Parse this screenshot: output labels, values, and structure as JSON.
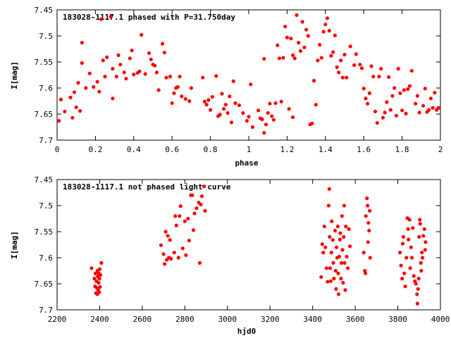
{
  "chart_data": [
    {
      "type": "scatter",
      "title": "183028-1117.1 phased with P=31.750day",
      "xlabel": "phase",
      "ylabel": "I[mag]",
      "xlim": [
        0,
        2
      ],
      "ylim": [
        7.45,
        7.7
      ],
      "y_inverted": true,
      "grid": false,
      "marker_color": "#ff0000",
      "xticks": [
        "0",
        "0.2",
        "0.4",
        "0.6",
        "0.8",
        "1",
        "1.2",
        "1.4",
        "1.6",
        "1.8",
        "2"
      ],
      "yticks": [
        "7.45",
        "7.5",
        "7.55",
        "7.6",
        "7.65",
        "7.7"
      ],
      "points": [
        [
          0.01,
          7.663
        ],
        [
          0.02,
          7.622
        ],
        [
          0.04,
          7.645
        ],
        [
          0.07,
          7.618
        ],
        [
          0.08,
          7.657
        ],
        [
          0.09,
          7.608
        ],
        [
          0.1,
          7.637
        ],
        [
          0.11,
          7.59
        ],
        [
          0.12,
          7.644
        ],
        [
          0.13,
          7.552
        ],
        [
          0.13,
          7.513
        ],
        [
          0.15,
          7.6
        ],
        [
          0.17,
          7.572
        ],
        [
          0.19,
          7.598
        ],
        [
          0.21,
          7.588
        ],
        [
          0.22,
          7.607
        ],
        [
          0.23,
          7.468
        ],
        [
          0.24,
          7.547
        ],
        [
          0.25,
          7.578
        ],
        [
          0.26,
          7.541
        ],
        [
          0.28,
          7.463
        ],
        [
          0.29,
          7.563
        ],
        [
          0.29,
          7.62
        ],
        [
          0.31,
          7.578
        ],
        [
          0.32,
          7.537
        ],
        [
          0.33,
          7.555
        ],
        [
          0.35,
          7.57
        ],
        [
          0.36,
          7.582
        ],
        [
          0.38,
          7.543
        ],
        [
          0.39,
          7.528
        ],
        [
          0.4,
          7.574
        ],
        [
          0.42,
          7.571
        ],
        [
          0.43,
          7.568
        ],
        [
          0.44,
          7.498
        ],
        [
          0.46,
          7.573
        ],
        [
          0.48,
          7.533
        ],
        [
          0.49,
          7.545
        ],
        [
          0.5,
          7.555
        ],
        [
          0.51,
          7.557
        ],
        [
          0.52,
          7.57
        ],
        [
          0.53,
          7.604
        ],
        [
          0.55,
          7.515
        ],
        [
          0.56,
          7.532
        ],
        [
          0.57,
          7.58
        ],
        [
          0.59,
          7.578
        ],
        [
          0.6,
          7.629
        ],
        [
          0.61,
          7.61
        ],
        [
          0.62,
          7.6
        ],
        [
          0.63,
          7.598
        ],
        [
          0.64,
          7.578
        ],
        [
          0.65,
          7.616
        ],
        [
          0.67,
          7.621
        ],
        [
          0.69,
          7.625
        ],
        [
          0.7,
          7.6
        ],
        [
          0.76,
          7.58
        ],
        [
          0.77,
          7.626
        ],
        [
          0.78,
          7.632
        ],
        [
          0.79,
          7.623
        ],
        [
          0.8,
          7.642
        ],
        [
          0.81,
          7.617
        ],
        [
          0.83,
          7.577
        ],
        [
          0.84,
          7.654
        ],
        [
          0.85,
          7.651
        ],
        [
          0.86,
          7.611
        ],
        [
          0.87,
          7.64
        ],
        [
          0.88,
          7.632
        ],
        [
          0.89,
          7.648
        ],
        [
          0.9,
          7.616
        ],
        [
          0.91,
          7.666
        ],
        [
          0.92,
          7.587
        ],
        [
          0.93,
          7.629
        ],
        [
          0.95,
          7.633
        ],
        [
          0.97,
          7.648
        ],
        [
          0.99,
          7.663
        ],
        [
          1.0,
          7.655
        ],
        [
          1.01,
          7.593
        ],
        [
          1.02,
          7.675
        ],
        [
          1.05,
          7.643
        ],
        [
          1.06,
          7.658
        ],
        [
          1.07,
          7.66
        ],
        [
          1.08,
          7.686
        ],
        [
          1.08,
          7.544
        ],
        [
          1.09,
          7.67
        ],
        [
          1.1,
          7.648
        ],
        [
          1.11,
          7.63
        ],
        [
          1.12,
          7.654
        ],
        [
          1.13,
          7.661
        ],
        [
          1.14,
          7.629
        ],
        [
          1.15,
          7.518
        ],
        [
          1.16,
          7.543
        ],
        [
          1.17,
          7.626
        ],
        [
          1.18,
          7.542
        ],
        [
          1.19,
          7.482
        ],
        [
          1.2,
          7.503
        ],
        [
          1.21,
          7.64
        ],
        [
          1.22,
          7.505
        ],
        [
          1.23,
          7.656
        ],
        [
          1.23,
          7.537
        ],
        [
          1.24,
          7.543
        ],
        [
          1.25,
          7.46
        ],
        [
          1.26,
          7.513
        ],
        [
          1.27,
          7.529
        ],
        [
          1.28,
          7.473
        ],
        [
          1.29,
          7.522
        ],
        [
          1.3,
          7.488
        ],
        [
          1.31,
          7.5
        ],
        [
          1.32,
          7.67
        ],
        [
          1.33,
          7.668
        ],
        [
          1.34,
          7.586
        ],
        [
          1.35,
          7.632
        ],
        [
          1.36,
          7.547
        ],
        [
          1.37,
          7.517
        ],
        [
          1.38,
          7.542
        ],
        [
          1.39,
          7.492
        ],
        [
          1.4,
          7.478
        ],
        [
          1.41,
          7.466
        ],
        [
          1.42,
          7.49
        ],
        [
          1.43,
          7.538
        ],
        [
          1.44,
          7.531
        ],
        [
          1.45,
          7.499
        ],
        [
          1.46,
          7.56
        ],
        [
          1.47,
          7.57
        ],
        [
          1.48,
          7.547
        ],
        [
          1.49,
          7.58
        ],
        [
          1.5,
          7.536
        ],
        [
          1.51,
          7.58
        ],
        [
          1.53,
          7.52
        ],
        [
          1.55,
          7.556
        ],
        [
          1.56,
          7.535
        ],
        [
          1.58,
          7.555
        ],
        [
          1.59,
          7.562
        ],
        [
          1.6,
          7.601
        ],
        [
          1.61,
          7.62
        ],
        [
          1.62,
          7.63
        ],
        [
          1.63,
          7.61
        ],
        [
          1.64,
          7.558
        ],
        [
          1.65,
          7.578
        ],
        [
          1.66,
          7.645
        ],
        [
          1.67,
          7.667
        ],
        [
          1.68,
          7.578
        ],
        [
          1.69,
          7.563
        ],
        [
          1.7,
          7.657
        ],
        [
          1.71,
          7.647
        ],
        [
          1.72,
          7.627
        ],
        [
          1.73,
          7.579
        ],
        [
          1.74,
          7.642
        ],
        [
          1.75,
          7.615
        ],
        [
          1.76,
          7.6
        ],
        [
          1.77,
          7.653
        ],
        [
          1.78,
          7.563
        ],
        [
          1.79,
          7.61
        ],
        [
          1.8,
          7.643
        ],
        [
          1.81,
          7.604
        ],
        [
          1.82,
          7.649
        ],
        [
          1.83,
          7.602
        ],
        [
          1.84,
          7.596
        ],
        [
          1.85,
          7.567
        ],
        [
          1.87,
          7.63
        ],
        [
          1.88,
          7.615
        ],
        [
          1.89,
          7.647
        ],
        [
          1.91,
          7.634
        ],
        [
          1.92,
          7.601
        ],
        [
          1.93,
          7.646
        ],
        [
          1.94,
          7.642
        ],
        [
          1.95,
          7.62
        ],
        [
          1.96,
          7.638
        ],
        [
          1.97,
          7.609
        ],
        [
          1.98,
          7.642
        ],
        [
          1.99,
          7.638
        ]
      ]
    },
    {
      "type": "scatter",
      "title": "183028-1117.1 not phased light curve",
      "xlabel": "hjd0",
      "ylabel": "I[mag]",
      "xlim": [
        2200,
        4000
      ],
      "ylim": [
        7.45,
        7.7
      ],
      "y_inverted": true,
      "grid": false,
      "marker_color": "#ff0000",
      "xticks": [
        "2200",
        "2400",
        "2600",
        "2800",
        "3000",
        "3200",
        "3400",
        "3600",
        "3800",
        "4000"
      ],
      "yticks": [
        "7.45",
        "7.5",
        "7.55",
        "7.6",
        "7.65",
        "7.7"
      ],
      "points": [
        [
          2362,
          7.62
        ],
        [
          2375,
          7.64
        ],
        [
          2378,
          7.655
        ],
        [
          2380,
          7.63
        ],
        [
          2382,
          7.668
        ],
        [
          2385,
          7.645
        ],
        [
          2387,
          7.658
        ],
        [
          2389,
          7.67
        ],
        [
          2390,
          7.625
        ],
        [
          2391,
          7.636
        ],
        [
          2393,
          7.662
        ],
        [
          2395,
          7.648
        ],
        [
          2396,
          7.63
        ],
        [
          2398,
          7.666
        ],
        [
          2399,
          7.64
        ],
        [
          2400,
          7.622
        ],
        [
          2402,
          7.656
        ],
        [
          2404,
          7.633
        ],
        [
          2408,
          7.61
        ],
        [
          2688,
          7.576
        ],
        [
          2700,
          7.593
        ],
        [
          2705,
          7.612
        ],
        [
          2710,
          7.55
        ],
        [
          2715,
          7.604
        ],
        [
          2720,
          7.558
        ],
        [
          2725,
          7.6
        ],
        [
          2730,
          7.566
        ],
        [
          2735,
          7.602
        ],
        [
          2750,
          7.59
        ],
        [
          2755,
          7.52
        ],
        [
          2760,
          7.538
        ],
        [
          2770,
          7.6
        ],
        [
          2775,
          7.52
        ],
        [
          2780,
          7.501
        ],
        [
          2790,
          7.582
        ],
        [
          2800,
          7.53
        ],
        [
          2805,
          7.595
        ],
        [
          2815,
          7.525
        ],
        [
          2820,
          7.567
        ],
        [
          2828,
          7.48
        ],
        [
          2835,
          7.48
        ],
        [
          2840,
          7.547
        ],
        [
          2845,
          7.515
        ],
        [
          2855,
          7.505
        ],
        [
          2865,
          7.494
        ],
        [
          2870,
          7.61
        ],
        [
          2875,
          7.498
        ],
        [
          2880,
          7.482
        ],
        [
          2890,
          7.463
        ],
        [
          2895,
          7.51
        ],
        [
          3440,
          7.637
        ],
        [
          3445,
          7.574
        ],
        [
          3450,
          7.59
        ],
        [
          3455,
          7.54
        ],
        [
          3460,
          7.58
        ],
        [
          3465,
          7.62
        ],
        [
          3470,
          7.646
        ],
        [
          3475,
          7.5
        ],
        [
          3478,
          7.468
        ],
        [
          3480,
          7.56
        ],
        [
          3482,
          7.62
        ],
        [
          3485,
          7.645
        ],
        [
          3488,
          7.59
        ],
        [
          3490,
          7.53
        ],
        [
          3495,
          7.566
        ],
        [
          3497,
          7.61
        ],
        [
          3500,
          7.64
        ],
        [
          3505,
          7.548
        ],
        [
          3508,
          7.625
        ],
        [
          3510,
          7.66
        ],
        [
          3512,
          7.58
        ],
        [
          3515,
          7.6
        ],
        [
          3518,
          7.54
        ],
        [
          3520,
          7.63
        ],
        [
          3522,
          7.67
        ],
        [
          3525,
          7.598
        ],
        [
          3528,
          7.565
        ],
        [
          3530,
          7.553
        ],
        [
          3533,
          7.64
        ],
        [
          3535,
          7.61
        ],
        [
          3538,
          7.52
        ],
        [
          3540,
          7.585
        ],
        [
          3543,
          7.648
        ],
        [
          3546,
          7.56
        ],
        [
          3548,
          7.5
        ],
        [
          3550,
          7.61
        ],
        [
          3553,
          7.662
        ],
        [
          3556,
          7.54
        ],
        [
          3560,
          7.598
        ],
        [
          3565,
          7.62
        ],
        [
          3570,
          7.545
        ],
        [
          3575,
          7.578
        ],
        [
          3640,
          7.59
        ],
        [
          3645,
          7.625
        ],
        [
          3648,
          7.63
        ],
        [
          3650,
          7.52
        ],
        [
          3655,
          7.486
        ],
        [
          3658,
          7.5
        ],
        [
          3660,
          7.57
        ],
        [
          3662,
          7.533
        ],
        [
          3665,
          7.548
        ],
        [
          3668,
          7.51
        ],
        [
          3670,
          7.6
        ],
        [
          3810,
          7.59
        ],
        [
          3815,
          7.615
        ],
        [
          3820,
          7.64
        ],
        [
          3823,
          7.573
        ],
        [
          3826,
          7.56
        ],
        [
          3830,
          7.63
        ],
        [
          3835,
          7.655
        ],
        [
          3840,
          7.6
        ],
        [
          3845,
          7.524
        ],
        [
          3848,
          7.545
        ],
        [
          3850,
          7.565
        ],
        [
          3855,
          7.527
        ],
        [
          3858,
          7.62
        ],
        [
          3862,
          7.58
        ],
        [
          3866,
          7.6
        ],
        [
          3870,
          7.543
        ],
        [
          3875,
          7.635
        ],
        [
          3880,
          7.645
        ],
        [
          3885,
          7.65
        ],
        [
          3890,
          7.67
        ],
        [
          3892,
          7.688
        ],
        [
          3895,
          7.66
        ],
        [
          3898,
          7.64
        ],
        [
          3900,
          7.56
        ],
        [
          3903,
          7.527
        ],
        [
          3905,
          7.535
        ],
        [
          3908,
          7.61
        ],
        [
          3910,
          7.625
        ],
        [
          3913,
          7.59
        ],
        [
          3916,
          7.6
        ],
        [
          3920,
          7.558
        ],
        [
          3925,
          7.545
        ],
        [
          3928,
          7.585
        ],
        [
          3930,
          7.57
        ]
      ]
    }
  ]
}
